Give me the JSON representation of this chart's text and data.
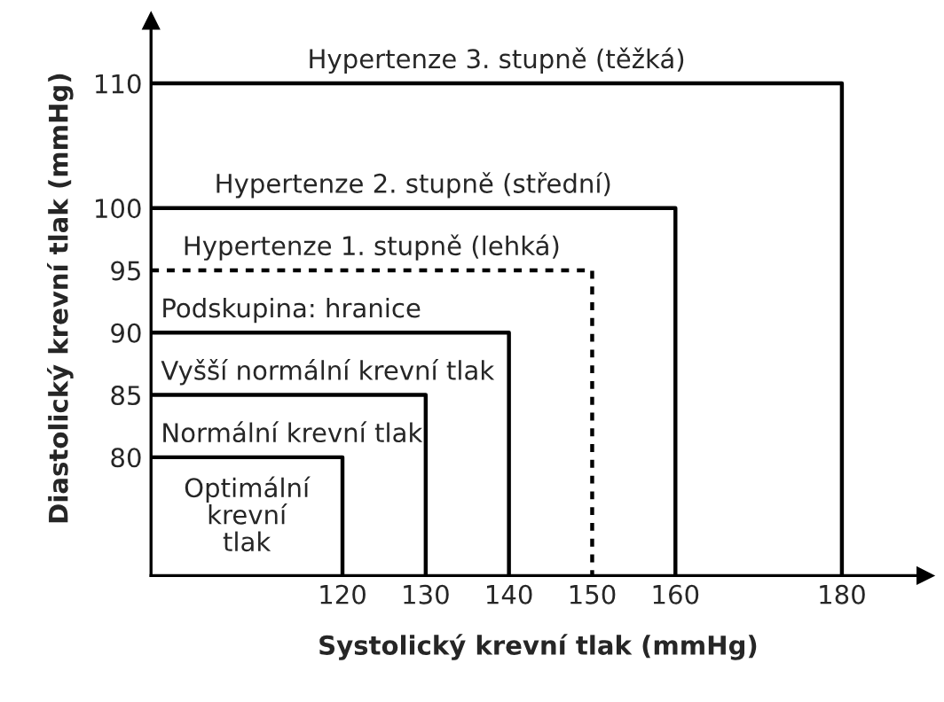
{
  "chart_data": {
    "type": "line",
    "xlabel": "Systolický krevní tlak (mmHg)",
    "ylabel": "Diastolický krevní tlak (mmHg)",
    "xlim": [
      97,
      190
    ],
    "ylim": [
      70.5,
      115
    ],
    "xticks": [
      120,
      130,
      140,
      150,
      160,
      180
    ],
    "yticks": [
      80,
      85,
      90,
      95,
      100,
      110
    ],
    "grid": false,
    "legend": false,
    "marker": "none",
    "line_style": "solid",
    "series": [
      {
        "color": "#000000",
        "x": [
          97,
          180,
          180
        ],
        "values": [
          110,
          110,
          70.5
        ]
      },
      {
        "color": "#000000",
        "x": [
          97,
          160,
          160
        ],
        "values": [
          100,
          100,
          70.5
        ]
      },
      {
        "color": "#000000",
        "x": [
          97,
          150,
          150
        ],
        "values": [
          95,
          95,
          70.5
        ],
        "line_style": "dashed"
      },
      {
        "color": "#000000",
        "x": [
          97,
          140,
          140
        ],
        "values": [
          90,
          90,
          70.5
        ]
      },
      {
        "color": "#000000",
        "x": [
          97,
          130,
          130
        ],
        "values": [
          85,
          85,
          70.5
        ]
      },
      {
        "color": "#000000",
        "x": [
          97,
          120,
          120
        ],
        "values": [
          80,
          80,
          70.5
        ]
      }
    ],
    "annotations": [
      "Hypertenze 3. stupně (těžká)",
      "Hypertenze 2. stupně (střední)",
      "Hypertenze 1. stupně (lehká)",
      "Podskupina: hranice",
      "Vyšší normální krevní tlak",
      "Normální krevní tlak",
      "Optimální\nkrevní\ntlak"
    ]
  }
}
